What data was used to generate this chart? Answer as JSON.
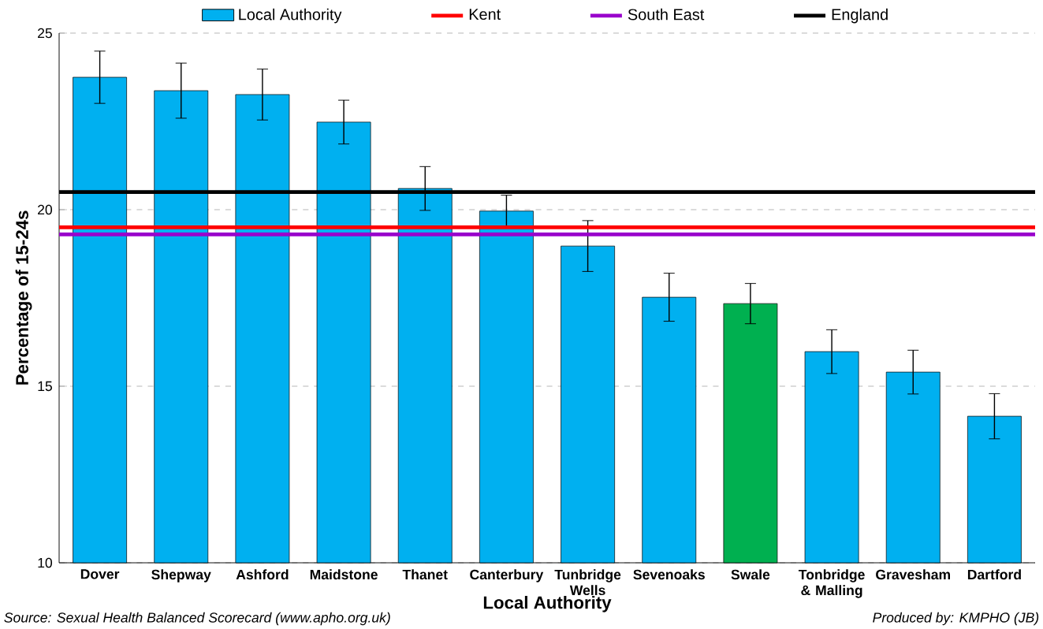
{
  "chart_data": {
    "type": "bar",
    "xlabel": "Local Authority",
    "ylabel": "Percentage of 15-24s",
    "categories": [
      "Dover",
      "Shepway",
      "Ashford",
      "Maidstone",
      "Thanet",
      "Canterbury",
      "Tunbridge Wells",
      "Sevenoaks",
      "Swale",
      "Tonbridge & Malling",
      "Gravesham",
      "Dartford"
    ],
    "series": [
      {
        "name": "Local Authority",
        "color": "#00b0f0",
        "colors": [
          "#00b0f0",
          "#00b0f0",
          "#00b0f0",
          "#00b0f0",
          "#00b0f0",
          "#00b0f0",
          "#00b0f0",
          "#00b0f0",
          "#00b050",
          "#00b0f0",
          "#00b0f0",
          "#00b0f0"
        ],
        "values": [
          23.75,
          23.37,
          23.26,
          22.48,
          20.6,
          19.96,
          18.97,
          17.52,
          17.34,
          15.98,
          15.4,
          14.15
        ],
        "errors": [
          0.74,
          0.78,
          0.72,
          0.62,
          0.62,
          0.45,
          0.72,
          0.68,
          0.57,
          0.62,
          0.62,
          0.64
        ]
      }
    ],
    "ref_lines": [
      {
        "axis": "y",
        "value": 19.5,
        "label": "Kent",
        "color": "#ff0000"
      },
      {
        "axis": "y",
        "value": 19.3,
        "label": "South East",
        "color": "#9900cc"
      },
      {
        "axis": "y",
        "value": 20.5,
        "label": "England",
        "color": "#000000"
      }
    ],
    "ylim": [
      10,
      25
    ],
    "yticks": [
      10,
      15,
      20,
      25
    ],
    "grid": "y",
    "legend": "top",
    "annotations": [
      "Source: Sexual Health Balanced Scorecard (www.apho.org.uk)",
      "Produced by: KMPHO (JB)"
    ]
  }
}
